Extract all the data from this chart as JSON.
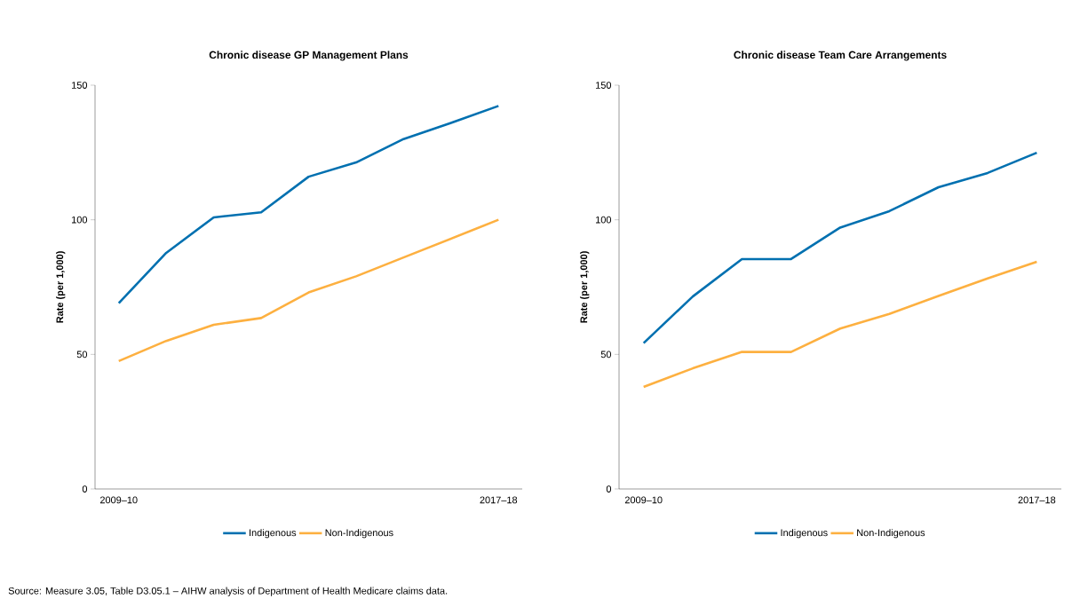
{
  "chart_data": [
    {
      "type": "line",
      "title": "Chronic disease GP Management Plans",
      "ylabel": "Rate (per 1,000)",
      "categories": [
        "2009–10",
        null,
        null,
        null,
        null,
        null,
        null,
        null,
        "2017–18"
      ],
      "ylim": [
        0,
        150
      ],
      "yticks": [
        0,
        50,
        100,
        150
      ],
      "legend": "bottom",
      "series": [
        {
          "name": "Indigenous",
          "color": "#0070b0",
          "values": [
            69,
            87.7,
            100.9,
            102.8,
            116,
            121.3,
            130,
            136,
            142.3
          ]
        },
        {
          "name": "Non-Indigenous",
          "color": "#fdb040",
          "values": [
            47.5,
            55,
            61,
            63.5,
            73,
            79,
            86,
            93,
            100
          ]
        }
      ],
      "annotations": [
        "Source: Measure 3.05, Table D3.05.1 – AIHW analysis of Department of Health Medicare claims data."
      ]
    },
    {
      "type": "line",
      "title": "Chronic disease Team Care Arrangements",
      "ylabel": "Rate (per 1,000)",
      "categories": [
        "2009–10",
        null,
        null,
        null,
        null,
        null,
        null,
        null,
        "2017–18"
      ],
      "ylim": [
        0,
        150
      ],
      "yticks": [
        0,
        50,
        100,
        150
      ],
      "legend": "bottom",
      "series": [
        {
          "name": "Indigenous",
          "color": "#0070b0",
          "values": [
            54.2,
            71.5,
            85.4,
            85.4,
            97.1,
            103.2,
            112.1,
            117.4,
            124.9
          ]
        },
        {
          "name": "Non-Indigenous",
          "color": "#fdb040",
          "values": [
            37.9,
            44.8,
            50.9,
            50.9,
            59.6,
            65,
            71.7,
            78.2,
            84.4
          ]
        }
      ]
    }
  ]
}
